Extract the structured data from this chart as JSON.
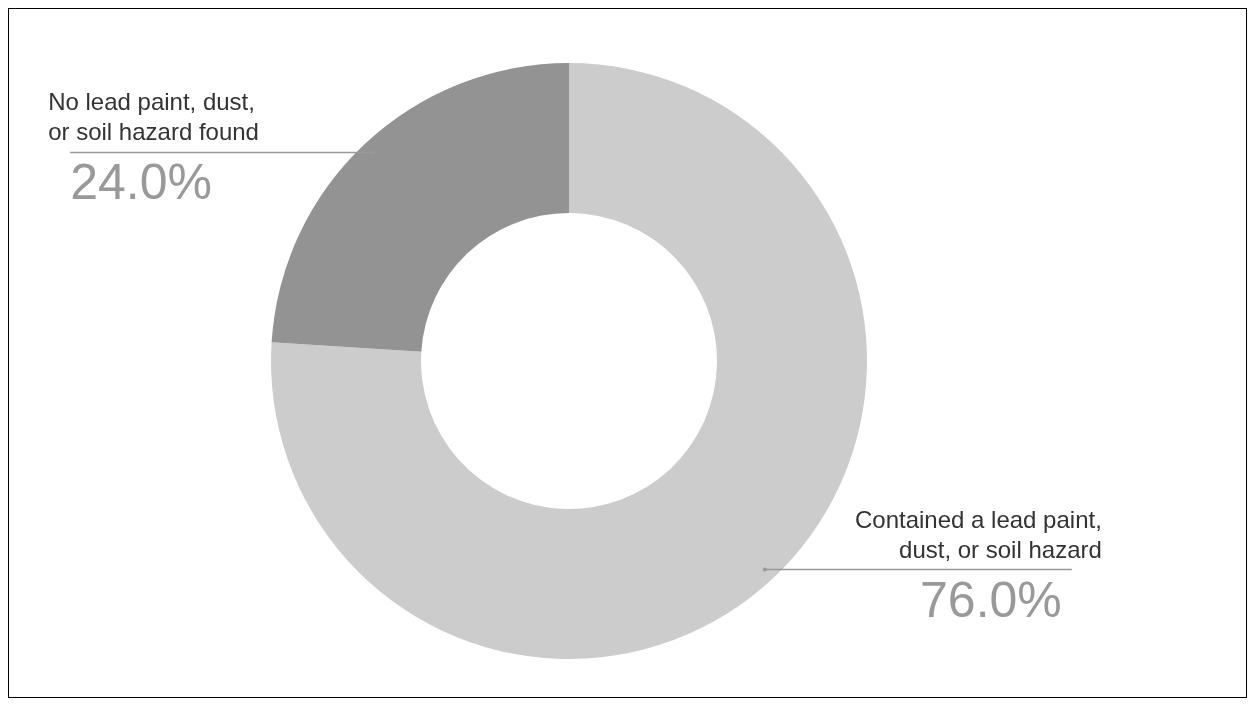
{
  "chart_data": {
    "type": "donut",
    "categories": [
      "Contained a lead paint,\ndust, or soil hazard",
      "No lead paint, dust,\nor soil hazard found"
    ],
    "values": [
      76.0,
      24.0
    ],
    "colors": [
      "#cccccc",
      "#939393"
    ],
    "value_labels": [
      "76.0%",
      "24.0%"
    ]
  }
}
